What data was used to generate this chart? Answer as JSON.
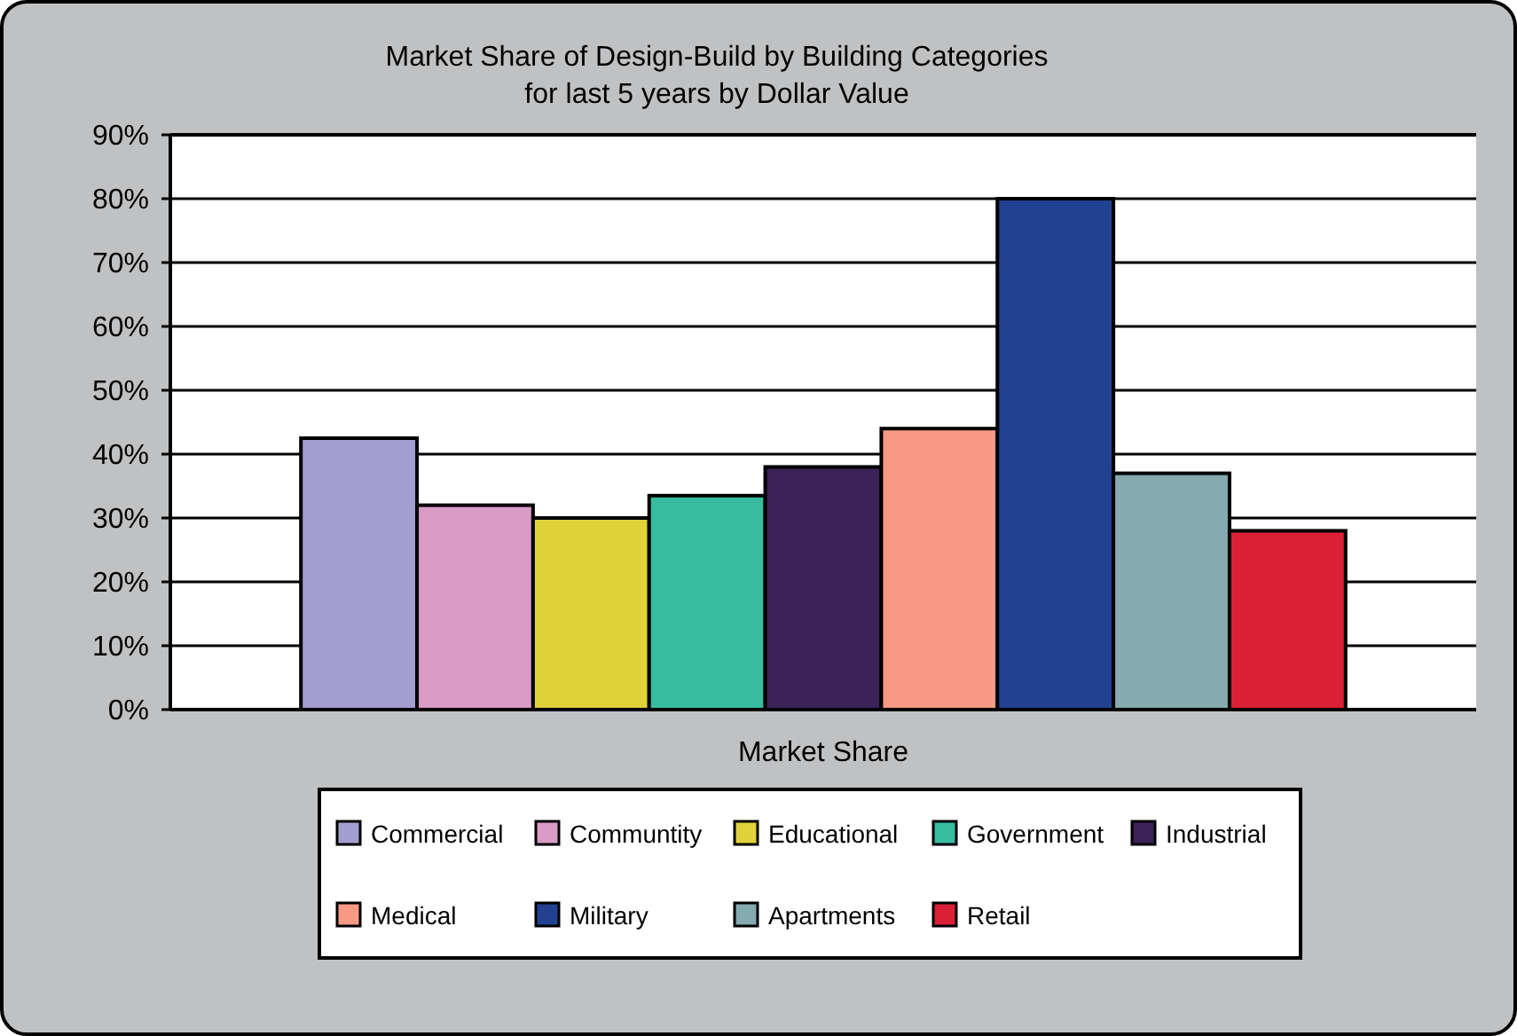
{
  "chart_data": {
    "type": "bar",
    "title": "Market Share of Design-Build by Building Categories",
    "subtitle": "for last 5 years by Dollar  Value",
    "categories": [
      "Market Share"
    ],
    "series": [
      {
        "name": "Commercial",
        "color": "#a29ecf",
        "values": [
          42.5
        ]
      },
      {
        "name": "Communtity",
        "color": "#d99bc5",
        "values": [
          32
        ]
      },
      {
        "name": "Educational",
        "color": "#e0d23a",
        "values": [
          30
        ]
      },
      {
        "name": "Government",
        "color": "#37bca0",
        "values": [
          33.5
        ]
      },
      {
        "name": "Industrial",
        "color": "#3d2159",
        "values": [
          38
        ]
      },
      {
        "name": "Medical",
        "color": "#f69985",
        "values": [
          44
        ]
      },
      {
        "name": "Military",
        "color": "#224191",
        "values": [
          80
        ]
      },
      {
        "name": "Apartments",
        "color": "#85aab0",
        "values": [
          37
        ]
      },
      {
        "name": "Retail",
        "color": "#da2037",
        "values": [
          28
        ]
      }
    ],
    "ylim": [
      0,
      90
    ],
    "yticks": [
      {
        "value": 0,
        "label": "0%"
      },
      {
        "value": 10,
        "label": "10%"
      },
      {
        "value": 20,
        "label": "20%"
      },
      {
        "value": 30,
        "label": "30%"
      },
      {
        "value": 40,
        "label": "40%"
      },
      {
        "value": 50,
        "label": "50%"
      },
      {
        "value": 60,
        "label": "60%"
      },
      {
        "value": 70,
        "label": "70%"
      },
      {
        "value": 80,
        "label": "80%"
      },
      {
        "value": 90,
        "label": "90%"
      }
    ],
    "grid": "y",
    "legend": "bottom"
  }
}
